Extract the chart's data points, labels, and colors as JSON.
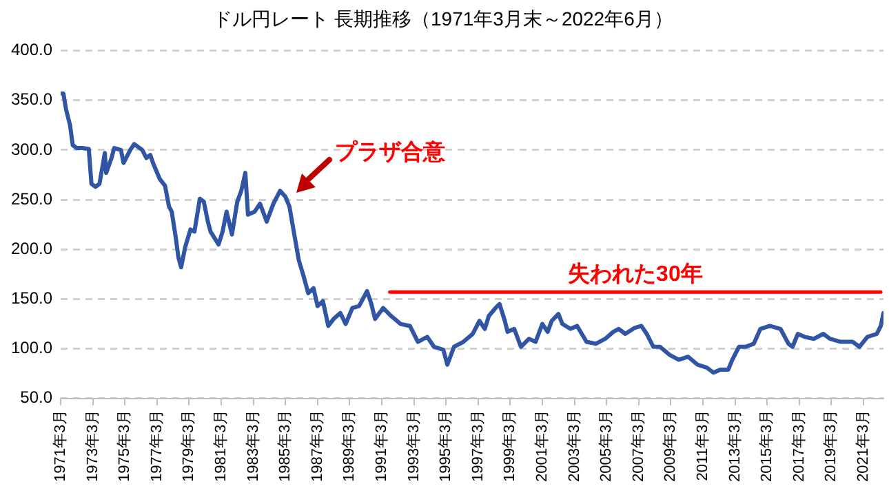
{
  "chart_data": {
    "type": "line",
    "title": "ドル円レート 長期推移（1971年3月末～2022年6月）",
    "xlim": [
      "1971-03",
      "2022-06"
    ],
    "xticks": [
      {
        "value": "1971-03",
        "label": "1971年3月"
      },
      {
        "value": "1973-03",
        "label": "1973年3月"
      },
      {
        "value": "1975-03",
        "label": "1975年3月"
      },
      {
        "value": "1977-03",
        "label": "1977年3月"
      },
      {
        "value": "1979-03",
        "label": "1979年3月"
      },
      {
        "value": "1981-03",
        "label": "1981年3月"
      },
      {
        "value": "1983-03",
        "label": "1983年3月"
      },
      {
        "value": "1985-03",
        "label": "1985年3月"
      },
      {
        "value": "1987-03",
        "label": "1987年3月"
      },
      {
        "value": "1989-03",
        "label": "1989年3月"
      },
      {
        "value": "1991-03",
        "label": "1991年3月"
      },
      {
        "value": "1993-03",
        "label": "1993年3月"
      },
      {
        "value": "1995-03",
        "label": "1995年3月"
      },
      {
        "value": "1997-03",
        "label": "1997年3月"
      },
      {
        "value": "1999-03",
        "label": "1999年3月"
      },
      {
        "value": "2001-03",
        "label": "2001年3月"
      },
      {
        "value": "2003-03",
        "label": "2003年3月"
      },
      {
        "value": "2005-03",
        "label": "2005年3月"
      },
      {
        "value": "2007-03",
        "label": "2007年3月"
      },
      {
        "value": "2009-03",
        "label": "2009年3月"
      },
      {
        "value": "2011-03",
        "label": "2011年3月"
      },
      {
        "value": "2013-03",
        "label": "2013年3月"
      },
      {
        "value": "2015-03",
        "label": "2015年3月"
      },
      {
        "value": "2017-03",
        "label": "2017年3月"
      },
      {
        "value": "2019-03",
        "label": "2019年3月"
      },
      {
        "value": "2021-03",
        "label": "2021年3月"
      }
    ],
    "ylim": [
      50,
      400
    ],
    "yticks": [
      {
        "value": 50,
        "label": "50.0"
      },
      {
        "value": 100,
        "label": "100.0"
      },
      {
        "value": 150,
        "label": "150.0"
      },
      {
        "value": 200,
        "label": "200.0"
      },
      {
        "value": 250,
        "label": "250.0"
      },
      {
        "value": 300,
        "label": "300.0"
      },
      {
        "value": 350,
        "label": "350.0"
      },
      {
        "value": 400,
        "label": "400.0"
      }
    ],
    "grid": "y",
    "legend": false,
    "marker": "none",
    "annotations": [
      {
        "text": "プラザ合意",
        "x": "1985-09",
        "y": 255
      }
    ],
    "series": [
      {
        "color": "#2f55a4",
        "x": [
          "1971-03",
          "1971-05",
          "1971-07",
          "1971-10",
          "1971-12",
          "1972-03",
          "1972-07",
          "1972-12",
          "1973-02",
          "1973-05",
          "1973-08",
          "1973-12",
          "1974-01",
          "1974-05",
          "1974-07",
          "1974-12",
          "1975-02",
          "1975-07",
          "1975-10",
          "1976-04",
          "1976-07",
          "1976-10",
          "1976-12",
          "1977-05",
          "1977-09",
          "1977-12",
          "1978-02",
          "1978-05",
          "1978-07",
          "1978-09",
          "1978-12",
          "1979-04",
          "1979-07",
          "1979-11",
          "1980-02",
          "1980-05",
          "1980-07",
          "1981-01",
          "1981-04",
          "1981-07",
          "1981-11",
          "1982-03",
          "1982-06",
          "1982-09",
          "1982-11",
          "1983-04",
          "1983-08",
          "1984-01",
          "1984-06",
          "1984-11",
          "1985-03",
          "1985-06",
          "1985-10",
          "1986-01",
          "1986-05",
          "1986-08",
          "1986-12",
          "1987-03",
          "1987-07",
          "1987-11",
          "1988-03",
          "1988-08",
          "1988-12",
          "1989-05",
          "1989-10",
          "1990-04",
          "1990-07",
          "1990-10",
          "1991-04",
          "1991-10",
          "1992-05",
          "1992-12",
          "1993-06",
          "1994-01",
          "1994-06",
          "1995-01",
          "1995-04",
          "1995-09",
          "1996-04",
          "1996-11",
          "1997-04",
          "1997-08",
          "1997-11",
          "1998-04",
          "1998-07",
          "1998-11",
          "1999-01",
          "1999-06",
          "1999-11",
          "2000-05",
          "2000-10",
          "2001-03",
          "2001-07",
          "2001-10",
          "2002-03",
          "2002-06",
          "2002-12",
          "2003-05",
          "2003-12",
          "2004-07",
          "2005-02",
          "2005-08",
          "2005-12",
          "2006-05",
          "2006-12",
          "2007-05",
          "2007-09",
          "2008-02",
          "2008-07",
          "2009-02",
          "2009-09",
          "2010-04",
          "2010-11",
          "2011-06",
          "2011-11",
          "2012-04",
          "2012-10",
          "2013-01",
          "2013-06",
          "2013-11",
          "2014-05",
          "2014-10",
          "2015-05",
          "2016-01",
          "2016-07",
          "2016-10",
          "2017-02",
          "2017-07",
          "2018-02",
          "2018-09",
          "2019-02",
          "2019-10",
          "2020-07",
          "2020-12",
          "2021-06",
          "2022-01",
          "2022-04",
          "2022-06"
        ],
        "values": [
          357,
          357,
          341,
          325,
          305,
          302,
          302,
          301,
          266,
          263,
          266,
          297,
          277,
          292,
          302,
          300,
          287,
          300,
          306,
          300,
          292,
          295,
          287,
          271,
          264,
          243,
          238,
          212,
          192,
          182,
          202,
          220,
          218,
          251,
          248,
          228,
          218,
          205,
          218,
          238,
          215,
          248,
          259,
          277,
          235,
          238,
          246,
          228,
          246,
          259,
          253,
          243,
          212,
          189,
          171,
          156,
          161,
          143,
          148,
          123,
          130,
          136,
          125,
          141,
          143,
          158,
          146,
          130,
          141,
          133,
          125,
          123,
          107,
          112,
          102,
          99,
          84,
          102,
          107,
          115,
          128,
          120,
          133,
          141,
          145,
          128,
          117,
          120,
          102,
          110,
          107,
          125,
          117,
          128,
          135,
          125,
          120,
          123,
          107,
          105,
          110,
          117,
          120,
          115,
          121,
          123,
          115,
          102,
          102,
          94,
          89,
          92,
          84,
          81,
          76,
          79,
          79,
          89,
          102,
          102,
          105,
          120,
          123,
          120,
          105,
          102,
          115,
          112,
          110,
          115,
          110,
          107,
          107,
          102,
          112,
          115,
          123,
          136
        ]
      },
      {
        "type": "line",
        "name": "失われた30年",
        "color": "#ff0000",
        "x": [
          "1991-09",
          "2022-04"
        ],
        "values": [
          157,
          157
        ]
      }
    ]
  }
}
